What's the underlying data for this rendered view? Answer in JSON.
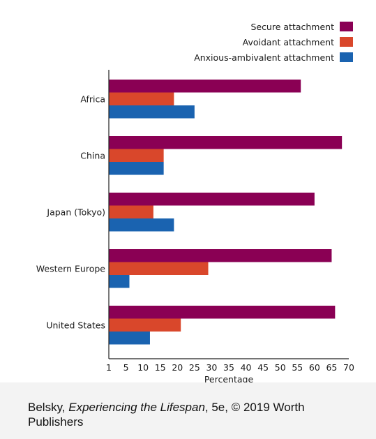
{
  "chart_data": {
    "type": "bar",
    "orientation": "horizontal",
    "categories": [
      "Africa",
      "China",
      "Japan (Tokyo)",
      "Western Europe",
      "United States"
    ],
    "series": [
      {
        "name": "Secure attachment",
        "color": "#8a0054",
        "values": [
          56,
          68,
          60,
          65,
          66
        ]
      },
      {
        "name": "Avoidant attachment",
        "color": "#d9472b",
        "values": [
          19,
          16,
          13,
          29,
          21
        ]
      },
      {
        "name": "Anxious-ambivalent attachment",
        "color": "#1a63b0",
        "values": [
          25,
          16,
          19,
          6,
          12
        ]
      }
    ],
    "xlabel": "Percentage",
    "xlim": [
      0,
      70
    ],
    "xticks": [
      1,
      5,
      10,
      15,
      20,
      25,
      30,
      35,
      40,
      45,
      50,
      55,
      60,
      65,
      70
    ],
    "legend_position": "top-right",
    "grid": false
  },
  "caption": {
    "prefix": "Belsky, ",
    "title": "Experiencing the Lifespan",
    "suffix": ", 5e, © 2019 Worth Publishers"
  }
}
